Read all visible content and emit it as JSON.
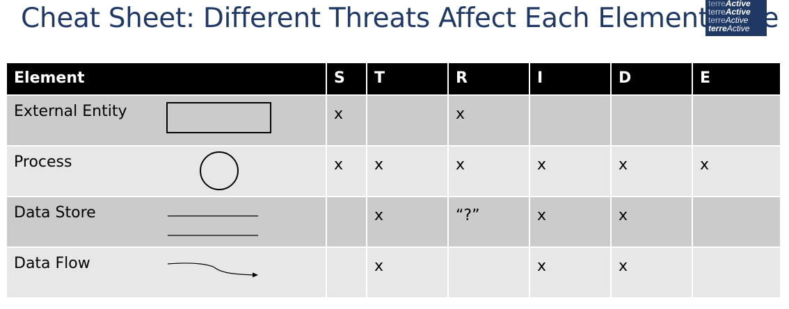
{
  "header": {
    "title": "Cheat Sheet: Different Threats Affect Each Element Type",
    "logo_lines": [
      {
        "light": "terre",
        "bold": "Active"
      },
      {
        "light": "terre",
        "bold": "Active"
      },
      {
        "light": "terre",
        "bold": "Active"
      },
      {
        "light": "terre",
        "bold": "Active"
      }
    ]
  },
  "table": {
    "columns": [
      "Element",
      "S",
      "T",
      "R",
      "I",
      "D",
      "E"
    ],
    "rows": [
      {
        "element": "External Entity",
        "icon": "rectangle-icon",
        "cells": [
          "x",
          "",
          "x",
          "",
          "",
          ""
        ]
      },
      {
        "element": "Process",
        "icon": "circle-icon",
        "cells": [
          "x",
          "x",
          "x",
          "x",
          "x",
          "x"
        ]
      },
      {
        "element": "Data Store",
        "icon": "parallel-lines-icon",
        "cells": [
          "",
          "x",
          "“?”",
          "x",
          "x",
          ""
        ]
      },
      {
        "element": "Data Flow",
        "icon": "arrow-icon",
        "cells": [
          "",
          "x",
          "",
          "x",
          "x",
          ""
        ]
      }
    ]
  },
  "colors": {
    "title": "#1f3864",
    "header_bg": "#000000",
    "header_text": "#ffffff",
    "row_dark": "#cbcbcb",
    "row_light": "#e7e7e7",
    "logo_bg": "#1f3864"
  }
}
